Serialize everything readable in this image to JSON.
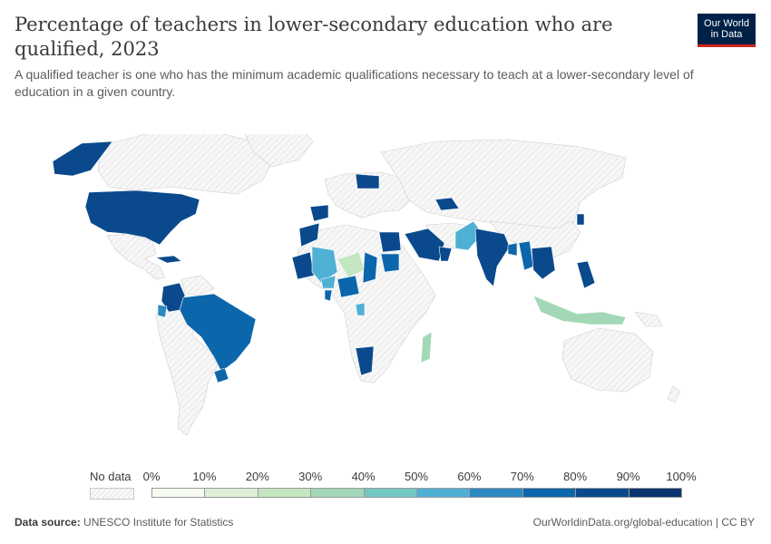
{
  "header": {
    "title": "Percentage of teachers in lower-secondary education who are qualified, 2023",
    "subtitle": "A qualified teacher is one who has the minimum academic qualifications necessary to teach at a lower-secondary level of education in a given country."
  },
  "logo": {
    "line1": "Our World",
    "line2": "in Data"
  },
  "legend": {
    "no_data_label": "No data",
    "ticks": [
      "0%",
      "10%",
      "20%",
      "30%",
      "40%",
      "50%",
      "60%",
      "70%",
      "80%",
      "90%",
      "100%"
    ],
    "colors": [
      "#f6fbef",
      "#dcf0d8",
      "#c4e6c0",
      "#a2d8b6",
      "#74c7c3",
      "#4fb0d4",
      "#2b8ac2",
      "#0c66ac",
      "#0a4a8c",
      "#08336f"
    ]
  },
  "colors": {
    "no_data": "#f0f0f0",
    "border": "#ffffff",
    "land_stroke": "#cfcfcf"
  },
  "map_data": {
    "year": "2023",
    "countries": [
      {
        "name": "United States",
        "bin": 8
      },
      {
        "name": "Alaska (United States)",
        "bin": 8
      },
      {
        "name": "Mexico",
        "bin": null
      },
      {
        "name": "Cuba",
        "bin": 8
      },
      {
        "name": "Colombia",
        "bin": 8
      },
      {
        "name": "Ecuador",
        "bin": 7
      },
      {
        "name": "Brazil",
        "bin": 7
      },
      {
        "name": "Uruguay",
        "bin": 7
      },
      {
        "name": "Spain",
        "bin": 8
      },
      {
        "name": "Morocco",
        "bin": 8
      },
      {
        "name": "Mauritania",
        "bin": 8
      },
      {
        "name": "Mali",
        "bin": 5
      },
      {
        "name": "Niger",
        "bin": 2
      },
      {
        "name": "Chad",
        "bin": 7
      },
      {
        "name": "Nigeria",
        "bin": 7
      },
      {
        "name": "Burkina Faso",
        "bin": 5
      },
      {
        "name": "Guinea",
        "bin": 7
      },
      {
        "name": "Ghana",
        "bin": 7
      },
      {
        "name": "Egypt",
        "bin": 8
      },
      {
        "name": "Sudan",
        "bin": 7
      },
      {
        "name": "Saudi Arabia",
        "bin": 8
      },
      {
        "name": "Oman",
        "bin": 8
      },
      {
        "name": "Iraq",
        "bin": 8
      },
      {
        "name": "Gabon",
        "bin": 5
      },
      {
        "name": "Namibia",
        "bin": 8
      },
      {
        "name": "Madagascar",
        "bin": 2
      },
      {
        "name": "Pakistan",
        "bin": 5
      },
      {
        "name": "India",
        "bin": 8
      },
      {
        "name": "Nepal",
        "bin": 8
      },
      {
        "name": "Bangladesh",
        "bin": 7
      },
      {
        "name": "Myanmar",
        "bin": 7
      },
      {
        "name": "Thailand",
        "bin": 8
      },
      {
        "name": "Cambodia",
        "bin": 8
      },
      {
        "name": "Vietnam",
        "bin": 8
      },
      {
        "name": "Philippines",
        "bin": 8
      },
      {
        "name": "Indonesia",
        "bin": 2
      },
      {
        "name": "Ukraine",
        "bin": 8
      },
      {
        "name": "Kazakhstan",
        "bin": null
      },
      {
        "name": "Uzbekistan",
        "bin": 8
      },
      {
        "name": "South Korea",
        "bin": 8
      }
    ]
  },
  "footer": {
    "source_label": "Data source:",
    "source_value": "UNESCO Institute for Statistics",
    "url": "OurWorldinData.org/global-education | CC BY"
  }
}
